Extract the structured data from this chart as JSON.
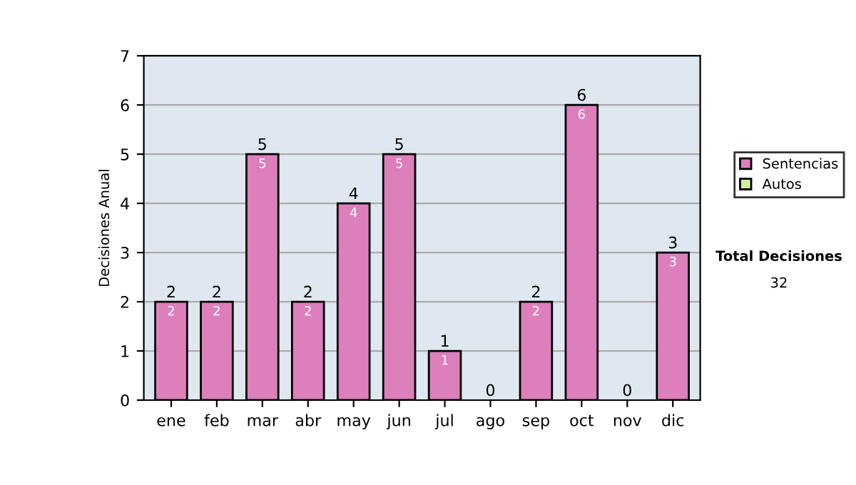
{
  "chart_data": {
    "type": "bar",
    "stacked": true,
    "ylabel": "Decisiones Anual",
    "categories": [
      "ene",
      "feb",
      "mar",
      "abr",
      "may",
      "jun",
      "jul",
      "ago",
      "sep",
      "oct",
      "nov",
      "dic"
    ],
    "series": [
      {
        "name": "Sentencias",
        "color": "#dd7fbb",
        "values": [
          2,
          2,
          5,
          2,
          4,
          5,
          1,
          0,
          2,
          6,
          0,
          3
        ],
        "value_labels": [
          "2",
          "2",
          "5",
          "2",
          "4",
          "5",
          "1",
          null,
          "2",
          "6",
          null,
          "3"
        ]
      },
      {
        "name": "Autos",
        "color": "#d4eca0",
        "values": [
          0,
          0,
          0,
          0,
          0,
          0,
          0,
          0,
          0,
          0,
          0,
          0
        ]
      }
    ],
    "totals": [
      "2",
      "2",
      "5",
      "2",
      "4",
      "5",
      "1",
      "0",
      "2",
      "6",
      "0",
      "3"
    ],
    "ylim": [
      0,
      7
    ],
    "yticks": [
      0,
      1,
      2,
      3,
      4,
      5,
      6,
      7
    ],
    "grid": "y",
    "legend": "right",
    "annotations": [
      "Total Decisiones",
      "32"
    ]
  }
}
